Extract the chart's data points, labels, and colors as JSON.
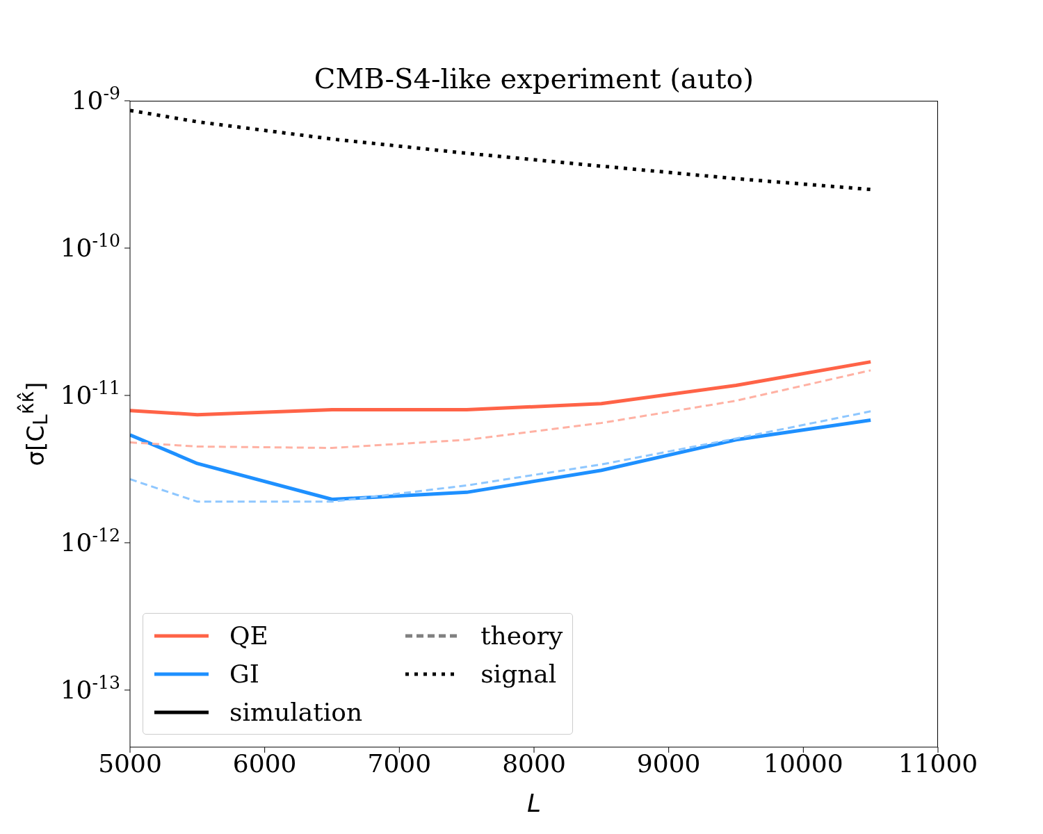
{
  "chart_data": {
    "type": "line",
    "title": "CMB-S4-like experiment (auto)",
    "xlabel": "L",
    "ylabel": "σ[C$_{L}$$^{κ̂κ̂}$]",
    "x": [
      5000,
      5500,
      6500,
      7500,
      8500,
      9500,
      10500
    ],
    "xlim": [
      5000,
      11000
    ],
    "xticks": [
      5000,
      6000,
      7000,
      8000,
      9000,
      10000,
      11000
    ],
    "log": "y",
    "ylim": [
      4.1e-14,
      1e-09
    ],
    "yticks": [
      {
        "value": 1e-13,
        "label": "10$^{-13}$"
      },
      {
        "value": 1e-12,
        "label": "10$^{-12}$"
      },
      {
        "value": 1e-11,
        "label": "10$^{-11}$"
      },
      {
        "value": 1e-10,
        "label": "10$^{-10}$"
      },
      {
        "value": 1e-09,
        "label": "10$^{-9}$"
      }
    ],
    "legend": "bottom left",
    "marker": "none",
    "series": [
      {
        "name": "QE",
        "color": "#ff6347",
        "line_style": "solid",
        "values": [
          7.9e-12,
          7.4e-12,
          8e-12,
          8e-12,
          8.8e-12,
          1.17e-11,
          1.69e-11
        ]
      },
      {
        "name": "GI",
        "color": "#1e90ff",
        "line_style": "solid",
        "values": [
          5.4e-12,
          3.45e-12,
          1.97e-12,
          2.2e-12,
          3.1e-12,
          5e-12,
          6.8e-12
        ]
      },
      {
        "name": "simulation",
        "color": "#000000",
        "line_style": "solid",
        "values": [
          null,
          null,
          null,
          null,
          null,
          null,
          null
        ]
      },
      {
        "name": "theory",
        "color": "#808080",
        "line_style": "dashed",
        "values": [
          null,
          null,
          null,
          null,
          null,
          null,
          null
        ]
      },
      {
        "name": "signal",
        "color": "#000000",
        "line_style": "dotted",
        "values": [
          8.6e-10,
          7.2e-10,
          5.5e-10,
          4.4e-10,
          3.6e-10,
          2.96e-10,
          2.5e-10
        ]
      },
      {
        "color": "#ffb1a3",
        "line_style": "dashed",
        "values": [
          4.8e-12,
          4.5e-12,
          4.4e-12,
          5e-12,
          6.5e-12,
          9.2e-12,
          1.48e-11
        ]
      },
      {
        "color": "#8ec7ff",
        "line_style": "dashed",
        "values": [
          2.7e-12,
          1.9e-12,
          1.9e-12,
          2.45e-12,
          3.4e-12,
          5.1e-12,
          7.8e-12
        ]
      }
    ]
  }
}
